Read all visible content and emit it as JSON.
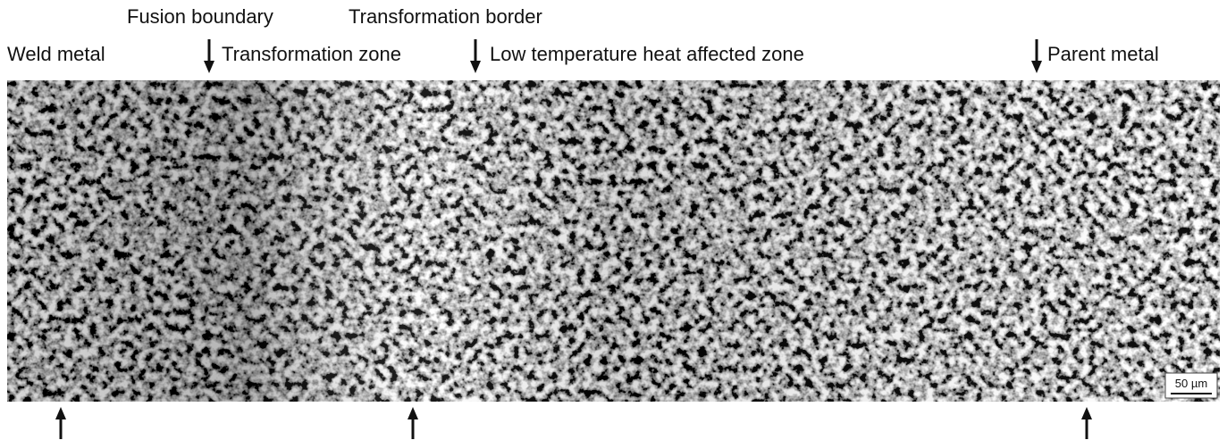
{
  "labels": {
    "weld_metal": "Weld metal",
    "fusion_boundary": "Fusion boundary",
    "transformation_zone": "Transformation zone",
    "transformation_border": "Transformation border",
    "low_temp_haz": "Low temperature heat affected zone",
    "parent_metal": "Parent metal"
  },
  "scale_bar": "50 µm"
}
